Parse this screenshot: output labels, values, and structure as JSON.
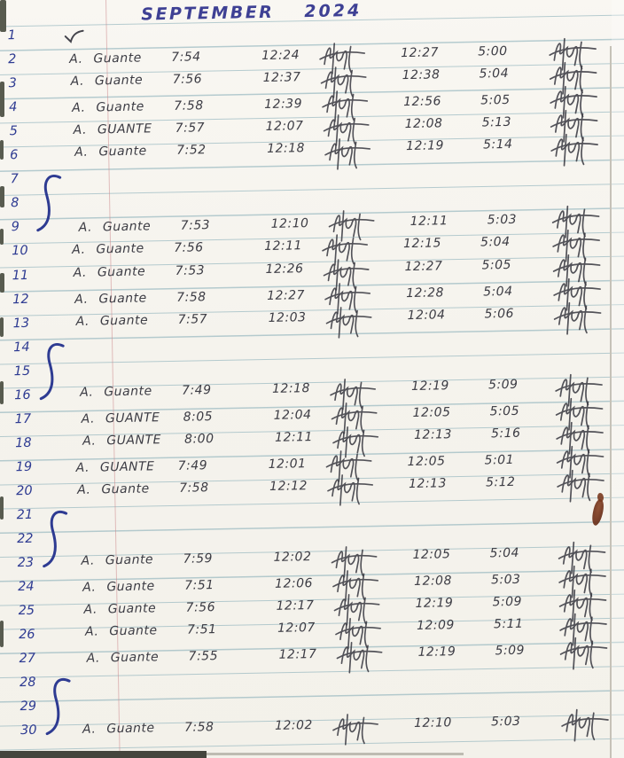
{
  "document": {
    "type_label": "handwritten attendance time log",
    "month": "SEPTEMBER",
    "year": "2024"
  },
  "ink": {
    "blue": "#2e3b92",
    "dark": "#3c3c44",
    "rule_line": "#88aeb8",
    "margin_line": "#ce8c90",
    "paper": "#f5f3ed",
    "stain": "#6e3019"
  },
  "rows": [
    {
      "num": "1",
      "type": "check"
    },
    {
      "num": "2",
      "type": "entry",
      "name": "A. Guante",
      "am_in": "7:54",
      "am_out": "12:24",
      "pm_in": "12:27",
      "pm_out": "5:00"
    },
    {
      "num": "3",
      "type": "entry",
      "name": "A. Guante",
      "am_in": "7:56",
      "am_out": "12:37",
      "pm_in": "12:38",
      "pm_out": "5:04"
    },
    {
      "num": "4",
      "type": "entry",
      "name": "A. Guante",
      "am_in": "7:58",
      "am_out": "12:39",
      "pm_in": "12:56",
      "pm_out": "5:05"
    },
    {
      "num": "5",
      "type": "entry",
      "name": "A. GUANTE",
      "am_in": "7:57",
      "am_out": "12:07",
      "pm_in": "12:08",
      "pm_out": "5:13"
    },
    {
      "num": "6",
      "type": "entry",
      "name": "A. Guante",
      "am_in": "7:52",
      "am_out": "12:18",
      "pm_in": "12:19",
      "pm_out": "5:14"
    },
    {
      "num": "7",
      "type": "curve"
    },
    {
      "num": "8",
      "type": "blank"
    },
    {
      "num": "9",
      "type": "entry",
      "name": "A. Guante",
      "am_in": "7:53",
      "am_out": "12:10",
      "pm_in": "12:11",
      "pm_out": "5:03"
    },
    {
      "num": "10",
      "type": "entry",
      "name": "A. Guante",
      "am_in": "7:56",
      "am_out": "12:11",
      "pm_in": "12:15",
      "pm_out": "5:04"
    },
    {
      "num": "11",
      "type": "entry",
      "name": "A. Guante",
      "am_in": "7:53",
      "am_out": "12:26",
      "pm_in": "12:27",
      "pm_out": "5:05"
    },
    {
      "num": "12",
      "type": "entry",
      "name": "A. Guante",
      "am_in": "7:58",
      "am_out": "12:27",
      "pm_in": "12:28",
      "pm_out": "5:04"
    },
    {
      "num": "13",
      "type": "entry",
      "name": "A. Guante",
      "am_in": "7:57",
      "am_out": "12:03",
      "pm_in": "12:04",
      "pm_out": "5:06"
    },
    {
      "num": "14",
      "type": "curve"
    },
    {
      "num": "15",
      "type": "blank"
    },
    {
      "num": "16",
      "type": "entry",
      "name": "A. Guante",
      "am_in": "7:49",
      "am_out": "12:18",
      "pm_in": "12:19",
      "pm_out": "5:09"
    },
    {
      "num": "17",
      "type": "entry",
      "name": "A. GUANTE",
      "am_in": "8:05",
      "am_out": "12:04",
      "pm_in": "12:05",
      "pm_out": "5:05"
    },
    {
      "num": "18",
      "type": "entry",
      "name": "A. GUANTE",
      "am_in": "8:00",
      "am_out": "12:11",
      "pm_in": "12:13",
      "pm_out": "5:16"
    },
    {
      "num": "19",
      "type": "entry",
      "name": "A. GUANTE",
      "am_in": "7:49",
      "am_out": "12:01",
      "pm_in": "12:05",
      "pm_out": "5:01"
    },
    {
      "num": "20",
      "type": "entry",
      "name": "A. Guante",
      "am_in": "7:58",
      "am_out": "12:12",
      "pm_in": "12:13",
      "pm_out": "5:12"
    },
    {
      "num": "21",
      "type": "curve"
    },
    {
      "num": "22",
      "type": "blank"
    },
    {
      "num": "23",
      "type": "entry",
      "name": "A. Guante",
      "am_in": "7:59",
      "am_out": "12:02",
      "pm_in": "12:05",
      "pm_out": "5:04"
    },
    {
      "num": "24",
      "type": "entry",
      "name": "A. Guante",
      "am_in": "7:51",
      "am_out": "12:06",
      "pm_in": "12:08",
      "pm_out": "5:03"
    },
    {
      "num": "25",
      "type": "entry",
      "name": "A. Guante",
      "am_in": "7:56",
      "am_out": "12:17",
      "pm_in": "12:19",
      "pm_out": "5:09"
    },
    {
      "num": "26",
      "type": "entry",
      "name": "A. Guante",
      "am_in": "7:51",
      "am_out": "12:07",
      "pm_in": "12:09",
      "pm_out": "5:11"
    },
    {
      "num": "27",
      "type": "entry",
      "name": "A. Guante",
      "am_in": "7:55",
      "am_out": "12:17",
      "pm_in": "12:19",
      "pm_out": "5:09"
    },
    {
      "num": "28",
      "type": "curve"
    },
    {
      "num": "29",
      "type": "blank"
    },
    {
      "num": "30",
      "type": "entry",
      "name": "A. Guante",
      "am_in": "7:58",
      "am_out": "12:02",
      "pm_in": "12:10",
      "pm_out": "5:03"
    }
  ]
}
